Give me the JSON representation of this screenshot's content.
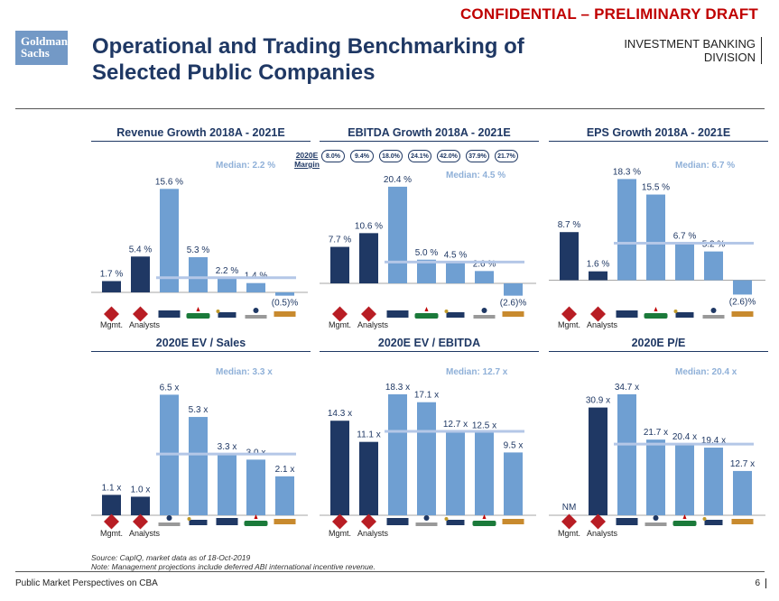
{
  "header": {
    "confidential": "CONFIDENTIAL – PRELIMINARY DRAFT",
    "logo_line1": "Goldman",
    "logo_line2": "Sachs",
    "title": "Operational and Trading Benchmarking of Selected Public Companies",
    "division_line1": "INVESTMENT BANKING",
    "division_line2": "DIVISION"
  },
  "colors": {
    "company": "#1f3864",
    "peer": "#6f9fd2",
    "median": "#b4c7e7",
    "confidential": "#c00000"
  },
  "margin_header": {
    "line1": "2020E",
    "line2": "Margin",
    "values": [
      "8.0%",
      "9.4%",
      "18.0%",
      "24.1%",
      "42.0%",
      "37.9%",
      "21.7%"
    ]
  },
  "group_labels": {
    "mgmt": "Mgmt.",
    "analysts": "Analysts"
  },
  "logo_row": [
    "cbr-icon",
    "cbr-icon",
    "boston-beer-logo",
    "heineken-logo",
    "abinbev-logo",
    "constellation-brands-logo",
    "molson-coors-logo"
  ],
  "chart_data": [
    {
      "type": "bar",
      "title": "Revenue Growth 2018A - 2021E",
      "median_label": "Median: 2.2 %",
      "median": 2.2,
      "values": [
        1.7,
        5.4,
        15.6,
        5.3,
        2.2,
        1.4,
        -0.5
      ],
      "labels": [
        "1.7 %",
        "5.4 %",
        "15.6 %",
        "5.3 %",
        "2.2 %",
        "1.4 %",
        "(0.5)%"
      ],
      "ylim": [
        -1.5,
        18.5
      ],
      "logos": [
        "cbr-icon",
        "cbr-icon",
        "boston-beer-logo",
        "heineken-logo",
        "abinbev-logo",
        "constellation-brands-logo",
        "molson-coors-logo"
      ]
    },
    {
      "type": "bar",
      "title": "EBITDA Growth 2018A - 2021E",
      "median_label": "Median: 4.5 %",
      "median": 4.5,
      "values": [
        7.7,
        10.6,
        20.4,
        5.0,
        4.5,
        2.6,
        -2.6
      ],
      "labels": [
        "7.7 %",
        "10.6 %",
        "20.4 %",
        "5.0 %",
        "4.5 %",
        "2.6 %",
        "(2.6)%"
      ],
      "ylim": [
        -4,
        24
      ],
      "logos": [
        "cbr-icon",
        "cbr-icon",
        "boston-beer-logo",
        "heineken-logo",
        "abinbev-logo",
        "constellation-brands-logo",
        "molson-coors-logo"
      ]
    },
    {
      "type": "bar",
      "title": "EPS Growth 2018A - 2021E",
      "median_label": "Median: 6.7 %",
      "median": 6.7,
      "values": [
        8.7,
        1.6,
        18.3,
        15.5,
        6.7,
        5.2,
        -2.6
      ],
      "labels": [
        "8.7 %",
        "1.6 %",
        "18.3 %",
        "15.5 %",
        "6.7 %",
        "5.2 %",
        "(2.6)%"
      ],
      "ylim": [
        -4,
        20
      ],
      "logos": [
        "cbr-icon",
        "cbr-icon",
        "boston-beer-logo",
        "heineken-logo",
        "abinbev-logo",
        "constellation-brands-logo",
        "molson-coors-logo"
      ]
    },
    {
      "type": "bar",
      "title": "2020E EV / Sales",
      "median_label": "Median: 3.3 x",
      "median": 3.3,
      "values": [
        1.1,
        1.0,
        6.5,
        5.3,
        3.3,
        3.0,
        2.1
      ],
      "labels": [
        "1.1 x",
        "1.0 x",
        "6.5 x",
        "5.3 x",
        "3.3 x",
        "3.0 x",
        "2.1 x"
      ],
      "ylim": [
        0,
        7.2
      ],
      "logos": [
        "cbr-icon",
        "cbr-icon",
        "constellation-brands-logo",
        "abinbev-logo",
        "boston-beer-logo",
        "heineken-logo",
        "molson-coors-logo"
      ]
    },
    {
      "type": "bar",
      "title": "2020E EV / EBITDA",
      "median_label": "Median: 12.7 x",
      "median": 12.7,
      "values": [
        14.3,
        11.1,
        18.3,
        17.1,
        12.7,
        12.5,
        9.5
      ],
      "labels": [
        "14.3 x",
        "11.1 x",
        "18.3 x",
        "17.1 x",
        "12.7 x",
        "12.5 x",
        "9.5 x"
      ],
      "ylim": [
        0,
        20.2
      ],
      "logos": [
        "cbr-icon",
        "cbr-icon",
        "boston-beer-logo",
        "constellation-brands-logo",
        "abinbev-logo",
        "heineken-logo",
        "molson-coors-logo"
      ]
    },
    {
      "type": "bar",
      "title": "2020E P/E",
      "median_label": "Median: 20.4 x",
      "median": 20.4,
      "values": [
        null,
        30.9,
        34.7,
        21.7,
        20.4,
        19.4,
        12.7
      ],
      "labels": [
        "NM",
        "30.9 x",
        "34.7 x",
        "21.7 x",
        "20.4 x",
        "19.4 x",
        "12.7 x"
      ],
      "ylim": [
        0,
        38.3
      ],
      "logos": [
        "cbr-icon",
        "cbr-icon",
        "boston-beer-logo",
        "constellation-brands-logo",
        "heineken-logo",
        "abinbev-logo",
        "molson-coors-logo"
      ]
    }
  ],
  "footer": {
    "source": "Source: CapIQ, market data as of 18-Oct-2019",
    "note": "Note: Management projections include deferred ABI international incentive revenue.",
    "left": "Public Market Perspectives on CBA",
    "page": "6"
  }
}
